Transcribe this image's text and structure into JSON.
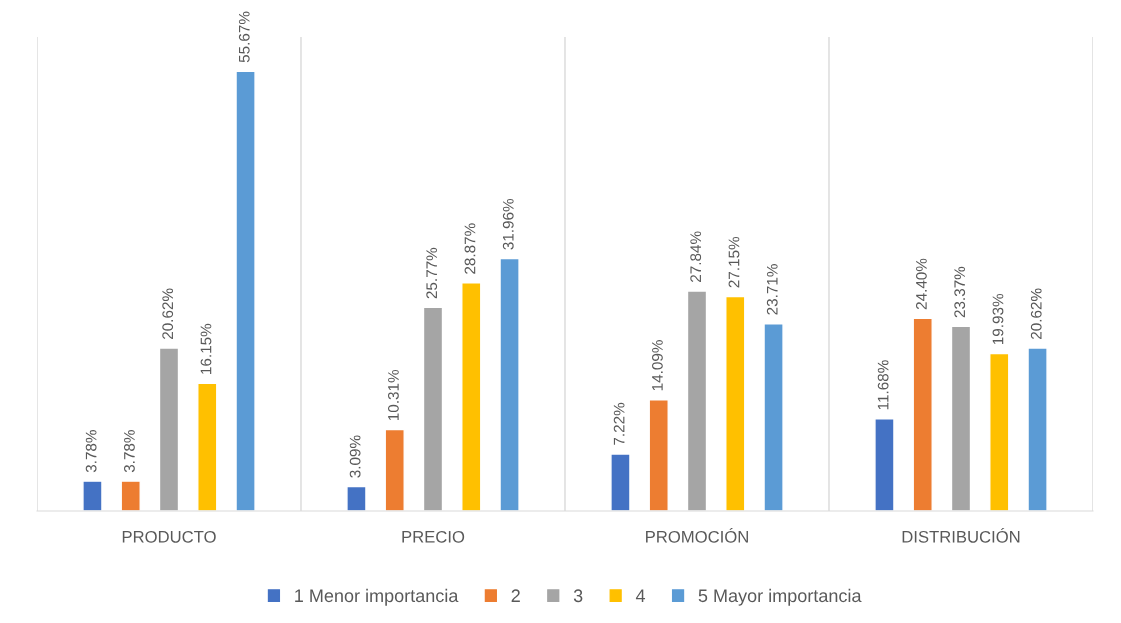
{
  "chart_data": {
    "type": "bar",
    "categories": [
      "PRODUCTO",
      "PRECIO",
      "PROMOCIÓN",
      "DISTRIBUCIÓN"
    ],
    "series": [
      {
        "name": "1 Menor importancia",
        "color": "#4472c4",
        "values": [
          3.78,
          3.09,
          7.22,
          11.68
        ],
        "value_labels": [
          "3.78%",
          "3.09%",
          "7.22%",
          "11.68%"
        ]
      },
      {
        "name": "2",
        "color": "#ed7d31",
        "values": [
          3.78,
          10.31,
          14.09,
          24.4
        ],
        "value_labels": [
          "3.78%",
          "10.31%",
          "14.09%",
          "24.40%"
        ]
      },
      {
        "name": "3",
        "color": "#a5a5a5",
        "values": [
          20.62,
          25.77,
          27.84,
          23.37
        ],
        "value_labels": [
          "20.62%",
          "25.77%",
          "27.84%",
          "23.37%"
        ]
      },
      {
        "name": "4",
        "color": "#ffc000",
        "values": [
          16.15,
          28.87,
          27.15,
          19.93
        ],
        "value_labels": [
          "16.15%",
          "28.87%",
          "27.15%",
          "19.93%"
        ]
      },
      {
        "name": "5 Mayor importancia",
        "color": "#5b9bd5",
        "values": [
          55.67,
          31.96,
          23.71,
          20.62
        ],
        "value_labels": [
          "55.67%",
          "31.96%",
          "23.71%",
          "20.62%"
        ]
      }
    ],
    "ylim": [
      0,
      60
    ],
    "tick_labels": "x",
    "grid": "x",
    "legend": "bottom"
  }
}
